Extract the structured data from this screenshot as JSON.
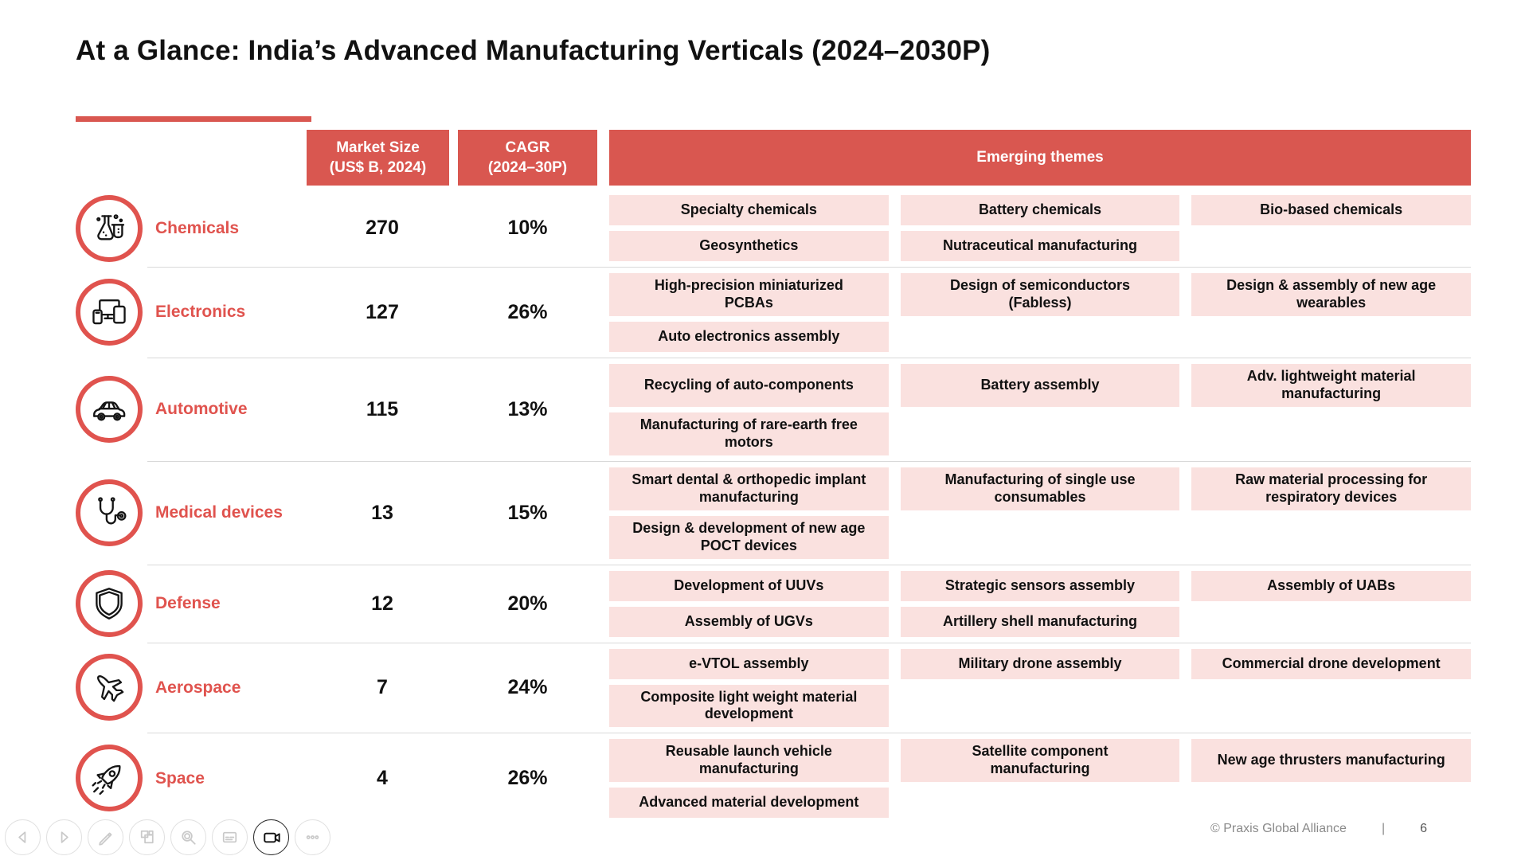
{
  "title": "At a Glance: India’s Advanced Manufacturing Verticals (2024–2030P)",
  "header": {
    "market_size_line1": "Market Size",
    "market_size_line2": "(US$ B, 2024)",
    "cagr_line1": "CAGR",
    "cagr_line2": "(2024–30P)",
    "themes": "Emerging themes"
  },
  "verticals": [
    {
      "name": "Chemicals",
      "icon": "chemicals-flask-icon",
      "market_size": "270",
      "cagr": "10%",
      "themes": [
        [
          "Specialty chemicals",
          "Battery chemicals",
          "Bio-based chemicals"
        ],
        [
          "Geosynthetics",
          "Nutraceutical manufacturing",
          ""
        ]
      ]
    },
    {
      "name": "Electronics",
      "icon": "electronics-devices-icon",
      "market_size": "127",
      "cagr": "26%",
      "themes": [
        [
          "High-precision miniaturized PCBAs",
          "Design of semiconductors (Fabless)",
          "Design & assembly of new age wearables"
        ],
        [
          "Auto electronics assembly",
          "",
          ""
        ]
      ]
    },
    {
      "name": "Automotive",
      "icon": "automotive-car-icon",
      "market_size": "115",
      "cagr": "13%",
      "themes": [
        [
          "Recycling of auto-components",
          "Battery assembly",
          "Adv. lightweight material manufacturing"
        ],
        [
          "Manufacturing of rare-earth free motors",
          "",
          ""
        ]
      ]
    },
    {
      "name": "Medical devices",
      "icon": "medical-stethoscope-icon",
      "market_size": "13",
      "cagr": "15%",
      "themes": [
        [
          "Smart dental & orthopedic implant manufacturing",
          "Manufacturing of single use consumables",
          "Raw material processing for respiratory devices"
        ],
        [
          "Design & development of new age POCT devices",
          "",
          ""
        ]
      ]
    },
    {
      "name": "Defense",
      "icon": "defense-shield-icon",
      "market_size": "12",
      "cagr": "20%",
      "themes": [
        [
          "Development of UUVs",
          "Strategic sensors assembly",
          "Assembly of UABs"
        ],
        [
          "Assembly of UGVs",
          "Artillery shell manufacturing",
          ""
        ]
      ]
    },
    {
      "name": "Aerospace",
      "icon": "aerospace-plane-icon",
      "market_size": "7",
      "cagr": "24%",
      "themes": [
        [
          "e-VTOL assembly",
          "Military drone assembly",
          "Commercial drone development"
        ],
        [
          "Composite light weight material development",
          "",
          ""
        ]
      ]
    },
    {
      "name": "Space",
      "icon": "space-rocket-icon",
      "market_size": "4",
      "cagr": "26%",
      "themes": [
        [
          "Reusable launch vehicle manufacturing",
          "Satellite component manufacturing",
          "New age thrusters manufacturing"
        ],
        [
          "Advanced material development",
          "",
          ""
        ]
      ]
    }
  ],
  "footer": {
    "copyright": "© Praxis Global Alliance",
    "separator": "|",
    "page_number": "6"
  },
  "toolbar": {
    "buttons": [
      "previous-icon",
      "next-icon",
      "pen-icon",
      "slides-overview-icon",
      "zoom-icon",
      "notes-icon",
      "camera-icon",
      "more-options-icon"
    ],
    "active_button": "camera-icon"
  },
  "colors": {
    "accent_red": "#D95750",
    "pink_box": "#FAE1DF",
    "name_red": "#E0534E"
  }
}
